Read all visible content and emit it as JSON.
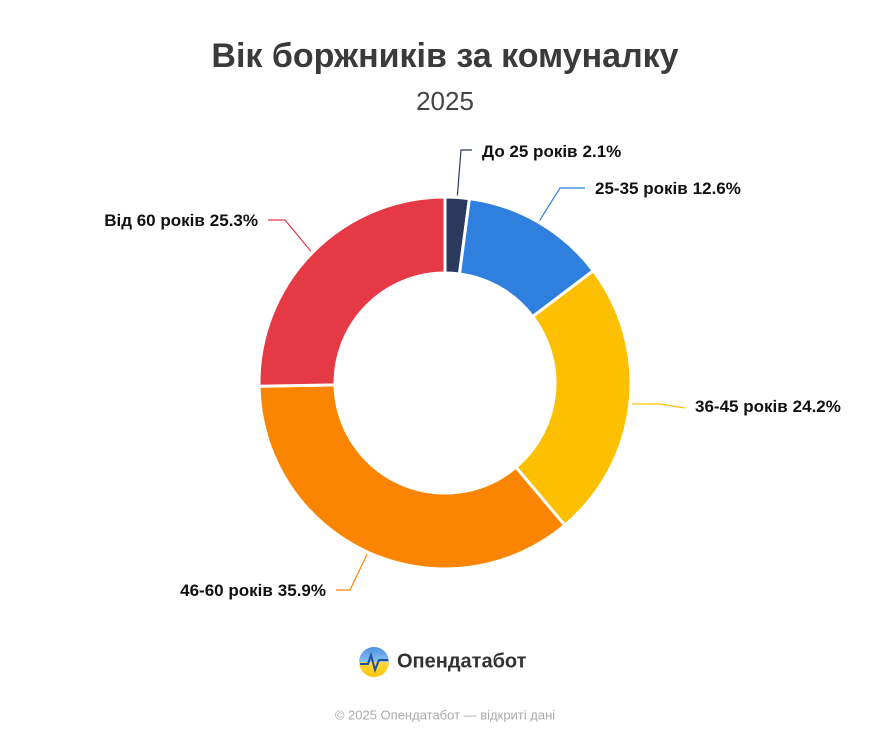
{
  "chart_data": {
    "type": "donut",
    "title": "Вік боржників за комуналку",
    "subtitle": "2025",
    "categories": [
      "До 25 років",
      "25-35 років",
      "36-45 років",
      "46-60 років",
      "Від 60 років"
    ],
    "values": [
      2.1,
      12.6,
      24.2,
      35.9,
      25.3
    ],
    "value_labels": [
      "2.1%",
      "12.6%",
      "24.2%",
      "35.9%",
      "25.3%"
    ],
    "colors": [
      "#2b3a5c",
      "#2f80de",
      "#fcc000",
      "#fb8500",
      "#e63946"
    ]
  },
  "brand": "Опендатабот",
  "footer": "© 2025 Опендатабот — відкриті дані"
}
